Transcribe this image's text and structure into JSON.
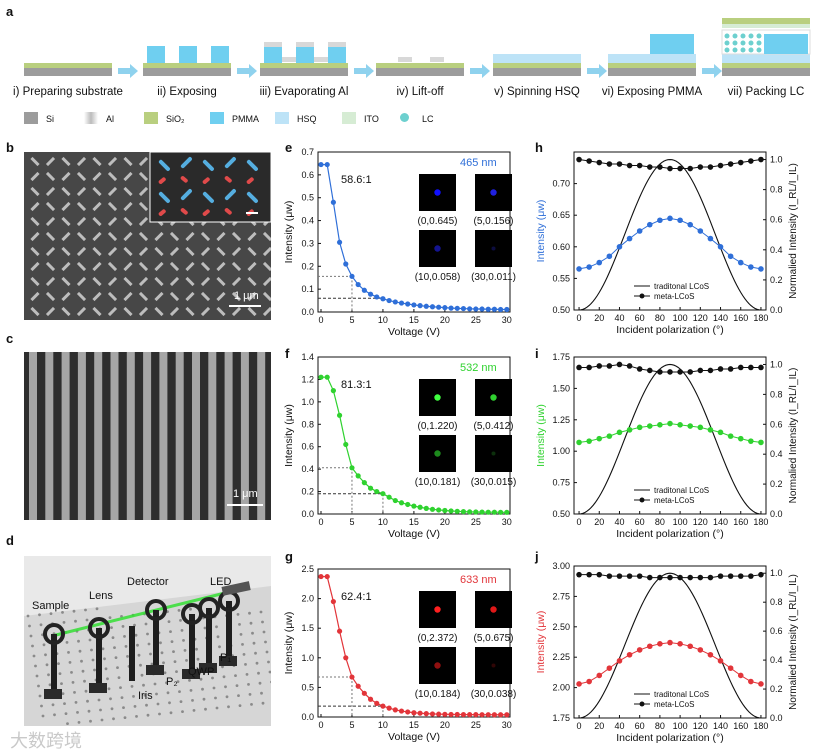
{
  "panel_labels": {
    "a": "a",
    "b": "b",
    "c": "c",
    "d": "d",
    "e": "e",
    "f": "f",
    "g": "g",
    "h": "h",
    "i": "i",
    "j": "j"
  },
  "fabrication": {
    "steps": [
      "i) Preparing substrate",
      "ii) Exposing",
      "iii) Evaporating Al",
      "iv) Lift-off",
      "v) Spinning HSQ",
      "vi) Exposing PMMA",
      "vii) Packing LC"
    ],
    "legend": [
      {
        "name": "Si",
        "color": "#9c9c9c"
      },
      {
        "name": "Al",
        "color": "#d8d8d8"
      },
      {
        "name": "SiO₂",
        "color": "#b9cf7f"
      },
      {
        "name": "PMMA",
        "color": "#6fcff0"
      },
      {
        "name": "HSQ",
        "color": "#bde3f7"
      },
      {
        "name": "ITO",
        "color": "#d6ecd4"
      },
      {
        "name": "LC",
        "color": "#6dd0cf"
      }
    ]
  },
  "sem": {
    "b_scale": "1 μm",
    "c_scale": "1 μm"
  },
  "setup": {
    "labels": [
      "Sample",
      "Lens",
      "Detector",
      "LED",
      "Iris",
      "P₂",
      "QWP",
      "P₁"
    ]
  },
  "colors": {
    "blue": "#2f6fd8",
    "green": "#2fd22f",
    "red": "#e2353a",
    "black": "#111111"
  },
  "contrast_charts": [
    {
      "id": "e",
      "wavelength": "465 nm",
      "color": "#2f6fd8",
      "ratio": "58.6:1",
      "ylim": [
        0,
        0.7
      ],
      "yticks": [
        "0.0",
        "0.1",
        "0.2",
        "0.3",
        "0.4",
        "0.5",
        "0.6",
        "0.7"
      ],
      "marker_v": 5,
      "marker_i": 0.156,
      "marker2_i": 0.06,
      "insets": [
        "(0,0.645)",
        "(5,0.156)",
        "(10,0.058)",
        "(30,0.011)"
      ],
      "spot": [
        "#1010ff",
        "#2020e0",
        "#141490",
        "#0d0d40"
      ]
    },
    {
      "id": "f",
      "wavelength": "532 nm",
      "color": "#2fd22f",
      "ratio": "81.3:1",
      "ylim": [
        0,
        1.4
      ],
      "yticks": [
        "0.0",
        "0.2",
        "0.4",
        "0.6",
        "0.8",
        "1.0",
        "1.2",
        "1.4"
      ],
      "marker_v": 5,
      "marker_i": 0.412,
      "marker2_i": 0.181,
      "marker_v2": 10,
      "insets": [
        "(0,1.220)",
        "(5,0.412)",
        "(10,0.181)",
        "(30,0.015)"
      ],
      "spot": [
        "#40ff40",
        "#30d030",
        "#1d8a1d",
        "#0c300c"
      ]
    },
    {
      "id": "g",
      "wavelength": "633 nm",
      "color": "#e2353a",
      "ratio": "62.4:1",
      "ylim": [
        0,
        2.5
      ],
      "yticks": [
        "0.0",
        "0.5",
        "1.0",
        "1.5",
        "2.0",
        "2.5"
      ],
      "marker_v": 5,
      "marker_i": 0.675,
      "marker2_i": 0.184,
      "marker_v2": 10,
      "insets": [
        "(0,2.372)",
        "(5,0.675)",
        "(10,0.184)",
        "(30,0.038)"
      ],
      "spot": [
        "#ff2020",
        "#e01818",
        "#901010",
        "#300606"
      ]
    }
  ],
  "chart_data": [
    {
      "type": "line",
      "title": "465 nm",
      "xlabel": "Voltage (V)",
      "ylabel": "Intensity (μw)",
      "xlim": [
        0,
        30
      ],
      "ylim": [
        0,
        0.7
      ],
      "series": [
        {
          "name": "465 nm",
          "x": [
            0,
            1,
            2,
            3,
            4,
            5,
            6,
            7,
            8,
            9,
            10,
            11,
            12,
            13,
            14,
            15,
            16,
            17,
            18,
            19,
            20,
            21,
            22,
            23,
            24,
            25,
            26,
            27,
            28,
            29,
            30
          ],
          "values": [
            0.645,
            0.645,
            0.48,
            0.305,
            0.21,
            0.156,
            0.12,
            0.095,
            0.078,
            0.066,
            0.058,
            0.05,
            0.044,
            0.039,
            0.035,
            0.031,
            0.028,
            0.025,
            0.023,
            0.021,
            0.019,
            0.017,
            0.016,
            0.015,
            0.014,
            0.013,
            0.013,
            0.012,
            0.012,
            0.011,
            0.011
          ]
        }
      ]
    },
    {
      "type": "line",
      "title": "532 nm",
      "xlabel": "Voltage (V)",
      "ylabel": "Intensity (μw)",
      "xlim": [
        0,
        30
      ],
      "ylim": [
        0,
        1.4
      ],
      "series": [
        {
          "name": "532 nm",
          "x": [
            0,
            1,
            2,
            3,
            4,
            5,
            6,
            7,
            8,
            9,
            10,
            11,
            12,
            13,
            14,
            15,
            16,
            17,
            18,
            19,
            20,
            21,
            22,
            23,
            24,
            25,
            26,
            27,
            28,
            29,
            30
          ],
          "values": [
            1.22,
            1.22,
            1.1,
            0.88,
            0.62,
            0.412,
            0.34,
            0.28,
            0.23,
            0.2,
            0.181,
            0.15,
            0.12,
            0.1,
            0.085,
            0.07,
            0.06,
            0.05,
            0.042,
            0.036,
            0.031,
            0.027,
            0.024,
            0.021,
            0.019,
            0.018,
            0.017,
            0.016,
            0.016,
            0.015,
            0.015
          ]
        }
      ]
    },
    {
      "type": "line",
      "title": "633 nm",
      "xlabel": "Voltage (V)",
      "ylabel": "Intensity (μw)",
      "xlim": [
        0,
        30
      ],
      "ylim": [
        0,
        2.5
      ],
      "series": [
        {
          "name": "633 nm",
          "x": [
            0,
            1,
            2,
            3,
            4,
            5,
            6,
            7,
            8,
            9,
            10,
            11,
            12,
            13,
            14,
            15,
            16,
            17,
            18,
            19,
            20,
            21,
            22,
            23,
            24,
            25,
            26,
            27,
            28,
            29,
            30
          ],
          "values": [
            2.372,
            2.372,
            1.95,
            1.45,
            1.0,
            0.675,
            0.52,
            0.4,
            0.3,
            0.23,
            0.184,
            0.15,
            0.12,
            0.1,
            0.085,
            0.072,
            0.064,
            0.057,
            0.052,
            0.048,
            0.045,
            0.043,
            0.042,
            0.041,
            0.04,
            0.04,
            0.039,
            0.039,
            0.038,
            0.038,
            0.038
          ]
        }
      ]
    },
    {
      "type": "line",
      "title": "",
      "xlabel": "Incident polarization (°)",
      "ylabel": "Intensity (μw)",
      "y2label": "Normalied Intensity (I_RL/I_IL)",
      "xlim": [
        0,
        190
      ],
      "ylim": [
        0.5,
        0.75
      ],
      "y2lim": [
        0,
        1.05
      ],
      "xticks": [
        "0",
        "20",
        "40",
        "60",
        "80",
        "100",
        "120",
        "140",
        "160",
        "180"
      ],
      "yticks": [
        "0.50",
        "0.55",
        "0.60",
        "0.65",
        "0.70"
      ],
      "legend": [
        "traditonal LCoS",
        "meta-LCoS"
      ],
      "series": [
        {
          "name": "meta-LCoS intensity",
          "x": [
            0,
            10,
            20,
            30,
            40,
            50,
            60,
            70,
            80,
            90,
            100,
            110,
            120,
            130,
            140,
            150,
            160,
            170,
            180
          ],
          "values": [
            0.565,
            0.568,
            0.575,
            0.585,
            0.6,
            0.613,
            0.625,
            0.635,
            0.642,
            0.645,
            0.642,
            0.635,
            0.625,
            0.613,
            0.6,
            0.585,
            0.575,
            0.568,
            0.565
          ],
          "color": "#2f6fd8"
        },
        {
          "name": "meta-LCoS normalized",
          "axis": "right",
          "x": [
            0,
            10,
            20,
            30,
            40,
            50,
            60,
            70,
            80,
            90,
            100,
            110,
            120,
            130,
            140,
            150,
            160,
            170,
            180
          ],
          "values": [
            1.0,
            0.99,
            0.98,
            0.97,
            0.97,
            0.96,
            0.96,
            0.95,
            0.95,
            0.94,
            0.94,
            0.94,
            0.95,
            0.95,
            0.96,
            0.97,
            0.98,
            0.99,
            1.0
          ],
          "color": "#111111"
        },
        {
          "name": "traditonal LCoS",
          "axis": "right",
          "function": "sin^2(x)",
          "color": "#111111"
        }
      ]
    },
    {
      "type": "line",
      "title": "",
      "xlabel": "Incident polarization (°)",
      "ylabel": "Intensity (μw)",
      "y2label": "Normalied Intensity (I_RL/I_IL)",
      "xlim": [
        0,
        190
      ],
      "ylim": [
        0.5,
        1.75
      ],
      "y2lim": [
        0,
        1.05
      ],
      "xticks": [
        "0",
        "20",
        "40",
        "60",
        "80",
        "100",
        "120",
        "140",
        "160",
        "180"
      ],
      "yticks": [
        "0.50",
        "0.75",
        "1.00",
        "1.25",
        "1.50",
        "1.75"
      ],
      "legend": [
        "traditonal LCoS",
        "meta-LCoS"
      ],
      "series": [
        {
          "name": "meta-LCoS intensity",
          "x": [
            0,
            10,
            20,
            30,
            40,
            50,
            60,
            70,
            80,
            90,
            100,
            110,
            120,
            130,
            140,
            150,
            160,
            170,
            180
          ],
          "values": [
            1.07,
            1.08,
            1.1,
            1.12,
            1.15,
            1.17,
            1.19,
            1.2,
            1.21,
            1.22,
            1.21,
            1.2,
            1.19,
            1.17,
            1.15,
            1.12,
            1.1,
            1.08,
            1.07
          ],
          "color": "#2fd22f"
        },
        {
          "name": "meta-LCoS normalized",
          "axis": "right",
          "x": [
            0,
            10,
            20,
            30,
            40,
            50,
            60,
            70,
            80,
            90,
            100,
            110,
            120,
            130,
            140,
            150,
            160,
            170,
            180
          ],
          "values": [
            0.98,
            0.98,
            0.99,
            0.99,
            1.0,
            0.99,
            0.97,
            0.96,
            0.95,
            0.95,
            0.95,
            0.95,
            0.96,
            0.96,
            0.97,
            0.97,
            0.98,
            0.98,
            0.98
          ],
          "color": "#111111"
        },
        {
          "name": "traditonal LCoS",
          "axis": "right",
          "function": "sin^2(x)",
          "color": "#111111"
        }
      ]
    },
    {
      "type": "line",
      "title": "",
      "xlabel": "Incident polarization (°)",
      "ylabel": "Intensity (μw)",
      "y2label": "Normalied Intensity (I_RL/I_IL)",
      "xlim": [
        0,
        190
      ],
      "ylim": [
        1.75,
        3.0
      ],
      "y2lim": [
        0,
        1.05
      ],
      "xticks": [
        "0",
        "20",
        "40",
        "60",
        "80",
        "100",
        "120",
        "140",
        "160",
        "180"
      ],
      "yticks": [
        "1.75",
        "2.00",
        "2.25",
        "2.50",
        "2.75",
        "3.00"
      ],
      "legend": [
        "traditonal LCoS",
        "meta-LCoS"
      ],
      "series": [
        {
          "name": "meta-LCoS intensity",
          "x": [
            0,
            10,
            20,
            30,
            40,
            50,
            60,
            70,
            80,
            90,
            100,
            110,
            120,
            130,
            140,
            150,
            160,
            170,
            180
          ],
          "values": [
            2.03,
            2.05,
            2.1,
            2.16,
            2.22,
            2.27,
            2.31,
            2.34,
            2.36,
            2.37,
            2.36,
            2.34,
            2.31,
            2.27,
            2.22,
            2.16,
            2.1,
            2.05,
            2.03
          ],
          "color": "#e2353a"
        },
        {
          "name": "meta-LCoS normalized",
          "axis": "right",
          "x": [
            0,
            10,
            20,
            30,
            40,
            50,
            60,
            70,
            80,
            90,
            100,
            110,
            120,
            130,
            140,
            150,
            160,
            170,
            180
          ],
          "values": [
            0.99,
            0.99,
            0.99,
            0.98,
            0.98,
            0.98,
            0.98,
            0.97,
            0.97,
            0.97,
            0.97,
            0.97,
            0.97,
            0.97,
            0.98,
            0.98,
            0.98,
            0.98,
            0.99
          ],
          "color": "#111111"
        },
        {
          "name": "traditonal LCoS",
          "axis": "right",
          "function": "sin^2(x)",
          "color": "#111111"
        }
      ]
    }
  ],
  "axes_text": {
    "x_voltage_ticks": [
      "0",
      "5",
      "10",
      "15",
      "20",
      "25",
      "30"
    ],
    "y2_ticks": [
      "0.0",
      "0.2",
      "0.4",
      "0.6",
      "0.8",
      "1.0"
    ]
  },
  "watermark": "大数跨境"
}
